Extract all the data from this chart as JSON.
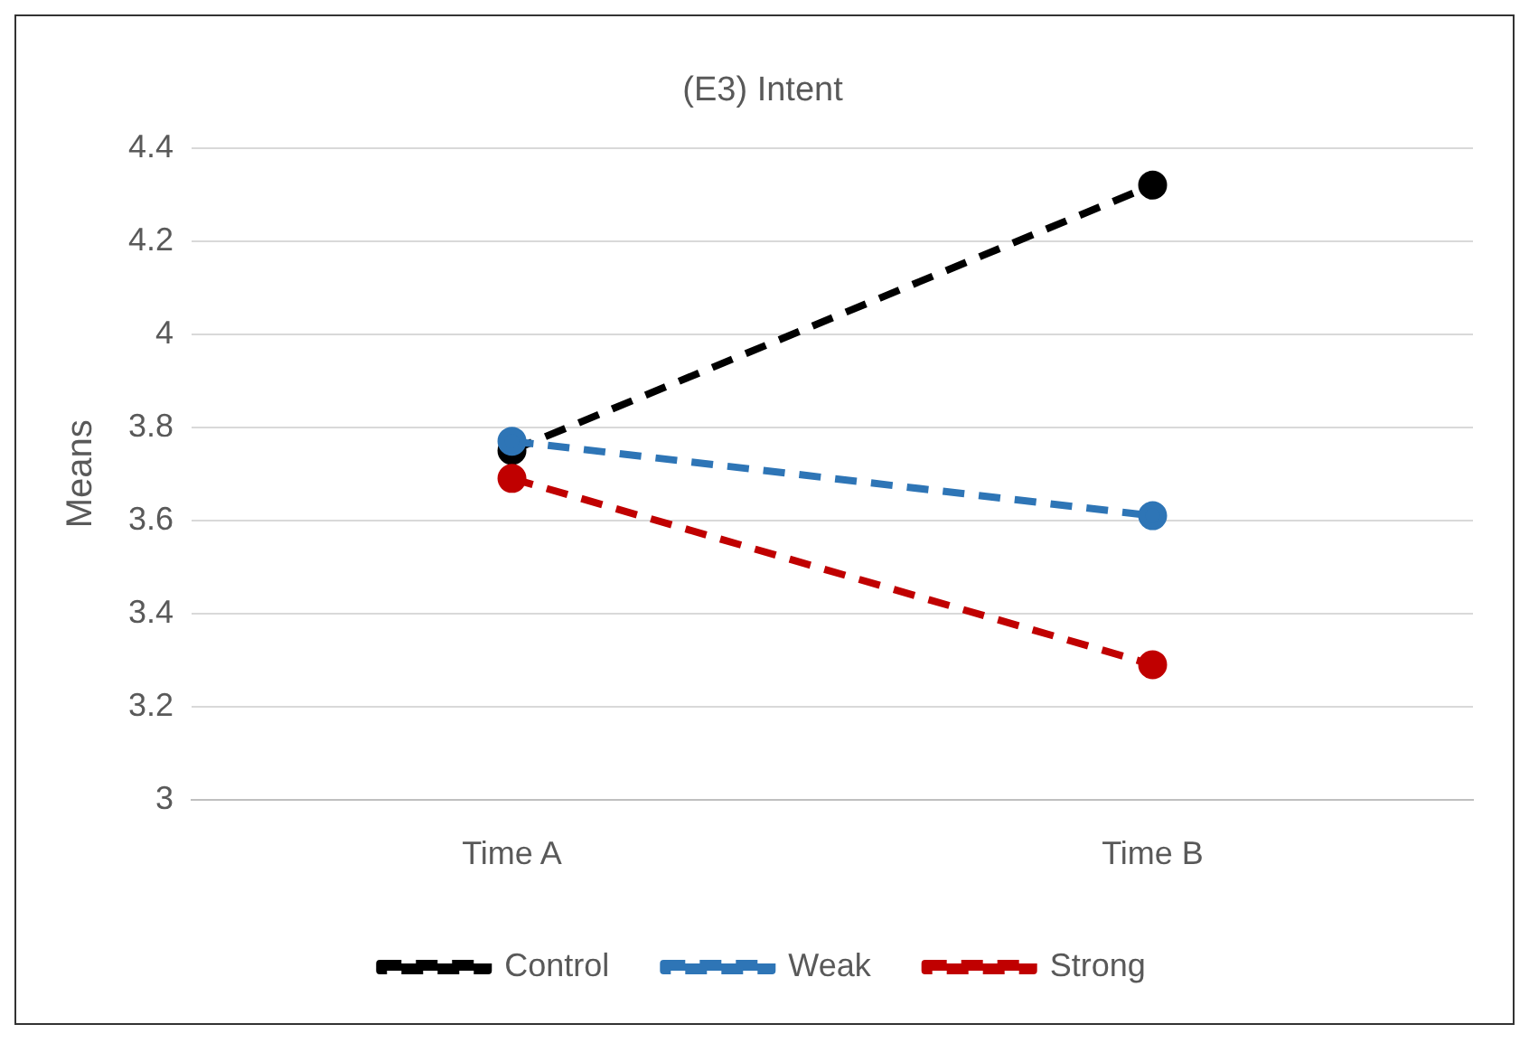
{
  "chart_data": {
    "type": "line",
    "title": "(E3) Intent",
    "ylabel": "Means",
    "categories": [
      "Time A",
      "Time B"
    ],
    "series": [
      {
        "name": "Control",
        "color": "#000000",
        "values": [
          3.75,
          4.32
        ]
      },
      {
        "name": "Weak",
        "color": "#2e75b6",
        "values": [
          3.77,
          3.61
        ]
      },
      {
        "name": "Strong",
        "color": "#c00000",
        "values": [
          3.69,
          3.29
        ]
      }
    ],
    "ylim": [
      3,
      4.4
    ],
    "yticks": [
      3,
      3.2,
      3.4,
      3.6,
      3.8,
      4,
      4.2,
      4.4
    ],
    "grid": "y",
    "legend": "bottom",
    "marker": "circle",
    "line_style": "dashed"
  }
}
